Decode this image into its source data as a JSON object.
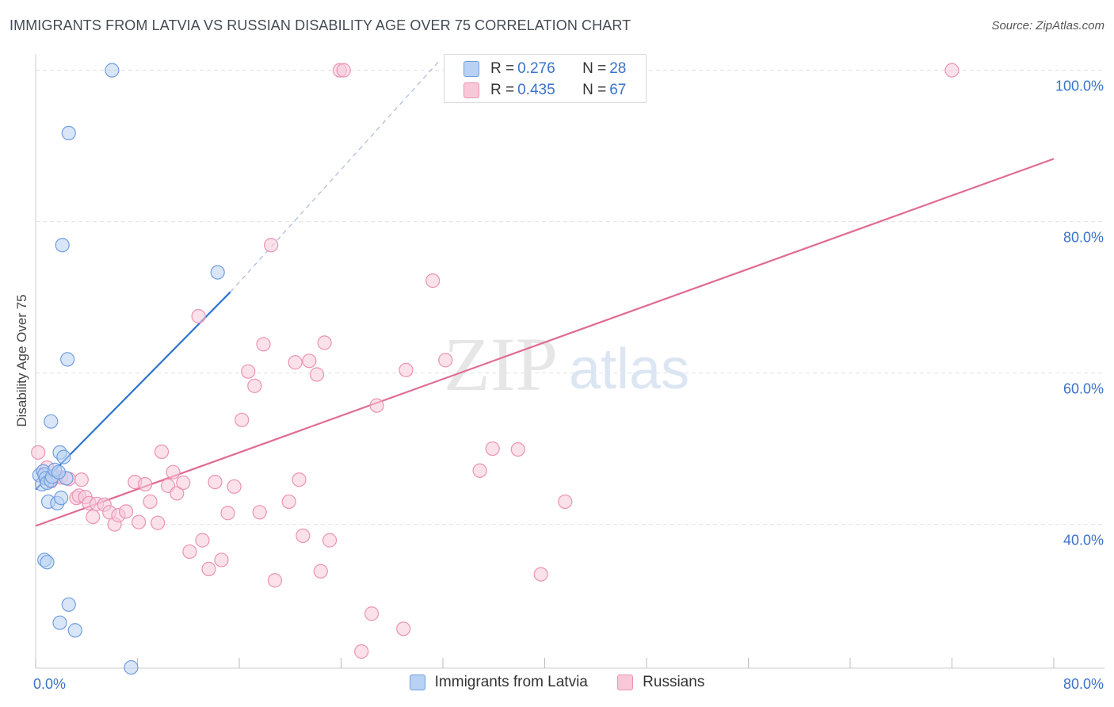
{
  "title": "IMMIGRANTS FROM LATVIA VS RUSSIAN DISABILITY AGE OVER 75 CORRELATION CHART",
  "source": "Source: ZipAtlas.com",
  "watermark": {
    "zip": "ZIP",
    "atlas": "atlas"
  },
  "colors": {
    "latvia_fill": "#b9d2f3",
    "latvia_stroke": "#6f9ee0",
    "latvia_line": "#2e74d0",
    "russians_fill": "#f8c8d8",
    "russians_stroke": "#eb93b3",
    "russians_line": "#e06b93",
    "axis_label": "#3a72c8",
    "grid": "#e3e3e3"
  },
  "stats": {
    "rows": [
      {
        "r_label": "R = ",
        "r_value": "0.276",
        "n_label": "N = ",
        "n_value": "28"
      },
      {
        "r_label": "R = ",
        "r_value": "0.435",
        "n_label": "N = ",
        "n_value": "67"
      }
    ]
  },
  "legend": [
    {
      "label": "Immigrants from Latvia"
    },
    {
      "label": "Russians"
    }
  ],
  "chart_data": {
    "type": "scatter",
    "title": "IMMIGRANTS FROM LATVIA VS RUSSIAN DISABILITY AGE OVER 75 CORRELATION CHART",
    "xlabel": "",
    "ylabel": "Disability Age Over 75",
    "xlim": [
      0,
      80
    ],
    "ylim": [
      21,
      103
    ],
    "x_ticks": [
      0,
      8,
      16,
      24,
      32,
      40,
      48,
      56,
      64,
      72,
      80
    ],
    "x_tick_labels": [
      {
        "value": 0,
        "label": "0.0%"
      },
      {
        "value": 80,
        "label": "80.0%"
      }
    ],
    "y_ticks": [
      {
        "value": 40,
        "label": "40.0%"
      },
      {
        "value": 60,
        "label": "60.0%"
      },
      {
        "value": 80,
        "label": "80.0%"
      },
      {
        "value": 100,
        "label": "100.0%"
      }
    ],
    "grid": "horizontal dashed",
    "legend_position": "bottom-center",
    "series": [
      {
        "name": "Immigrants from Latvia",
        "R": 0.276,
        "N": 28,
        "trend": {
          "x": [
            0,
            15.3
          ],
          "y": [
            44.6,
            70.7
          ]
        },
        "trend_extension": {
          "x": [
            15.3,
            31.8
          ],
          "y": [
            70.7,
            101.4
          ]
        },
        "points": [
          [
            0.3,
            46.5
          ],
          [
            0.5,
            45.3
          ],
          [
            0.6,
            47.0
          ],
          [
            0.7,
            46.6
          ],
          [
            0.8,
            46.1
          ],
          [
            0.9,
            45.5
          ],
          [
            1.0,
            43.0
          ],
          [
            1.2,
            45.8
          ],
          [
            1.3,
            46.3
          ],
          [
            1.5,
            47.2
          ],
          [
            1.7,
            42.8
          ],
          [
            1.9,
            49.5
          ],
          [
            2.0,
            43.5
          ],
          [
            2.2,
            48.9
          ],
          [
            2.4,
            46.1
          ],
          [
            1.8,
            46.9
          ],
          [
            0.7,
            35.3
          ],
          [
            0.9,
            35.0
          ],
          [
            1.2,
            53.6
          ],
          [
            2.1,
            76.9
          ],
          [
            2.6,
            91.7
          ],
          [
            2.5,
            61.8
          ],
          [
            2.6,
            29.4
          ],
          [
            1.9,
            27.0
          ],
          [
            3.1,
            26.0
          ],
          [
            6.0,
            100.0
          ],
          [
            7.5,
            21.1
          ],
          [
            14.3,
            73.3
          ]
        ]
      },
      {
        "name": "Russians",
        "R": 0.435,
        "N": 67,
        "trend": {
          "x": [
            0,
            80
          ],
          "y": [
            39.8,
            88.3
          ]
        },
        "points": [
          [
            0.2,
            49.5
          ],
          [
            0.9,
            47.5
          ],
          [
            1.2,
            45.7
          ],
          [
            1.6,
            46.3
          ],
          [
            2.0,
            46.2
          ],
          [
            2.6,
            46.0
          ],
          [
            3.2,
            43.5
          ],
          [
            3.4,
            43.8
          ],
          [
            3.6,
            45.9
          ],
          [
            3.9,
            43.6
          ],
          [
            4.2,
            42.8
          ],
          [
            4.5,
            41.0
          ],
          [
            4.8,
            42.7
          ],
          [
            5.4,
            42.6
          ],
          [
            5.8,
            41.6
          ],
          [
            6.2,
            40.0
          ],
          [
            6.5,
            41.2
          ],
          [
            7.1,
            41.7
          ],
          [
            7.8,
            45.6
          ],
          [
            8.1,
            40.3
          ],
          [
            8.6,
            45.3
          ],
          [
            9.0,
            43.0
          ],
          [
            9.6,
            40.2
          ],
          [
            9.9,
            49.6
          ],
          [
            10.4,
            45.1
          ],
          [
            10.8,
            46.9
          ],
          [
            11.1,
            44.1
          ],
          [
            11.6,
            45.5
          ],
          [
            12.1,
            36.4
          ],
          [
            12.8,
            67.5
          ],
          [
            13.1,
            37.9
          ],
          [
            13.6,
            34.1
          ],
          [
            14.1,
            45.6
          ],
          [
            14.6,
            35.3
          ],
          [
            15.1,
            41.5
          ],
          [
            15.6,
            45.0
          ],
          [
            16.2,
            53.8
          ],
          [
            16.7,
            60.2
          ],
          [
            17.2,
            58.3
          ],
          [
            17.6,
            41.6
          ],
          [
            17.9,
            63.8
          ],
          [
            18.5,
            76.9
          ],
          [
            18.8,
            32.6
          ],
          [
            19.9,
            43.0
          ],
          [
            20.4,
            61.4
          ],
          [
            20.7,
            45.9
          ],
          [
            21.0,
            38.5
          ],
          [
            21.5,
            61.6
          ],
          [
            22.1,
            59.8
          ],
          [
            22.4,
            33.8
          ],
          [
            22.7,
            64.0
          ],
          [
            23.1,
            37.9
          ],
          [
            23.9,
            100.0
          ],
          [
            24.2,
            100.0
          ],
          [
            25.6,
            23.2
          ],
          [
            26.4,
            28.2
          ],
          [
            26.8,
            55.7
          ],
          [
            28.9,
            26.2
          ],
          [
            29.1,
            60.4
          ],
          [
            31.2,
            72.2
          ],
          [
            32.2,
            61.7
          ],
          [
            34.9,
            47.1
          ],
          [
            35.9,
            50.0
          ],
          [
            37.9,
            49.9
          ],
          [
            39.7,
            33.4
          ],
          [
            41.6,
            43.0
          ],
          [
            72.0,
            100.0
          ]
        ]
      }
    ]
  }
}
